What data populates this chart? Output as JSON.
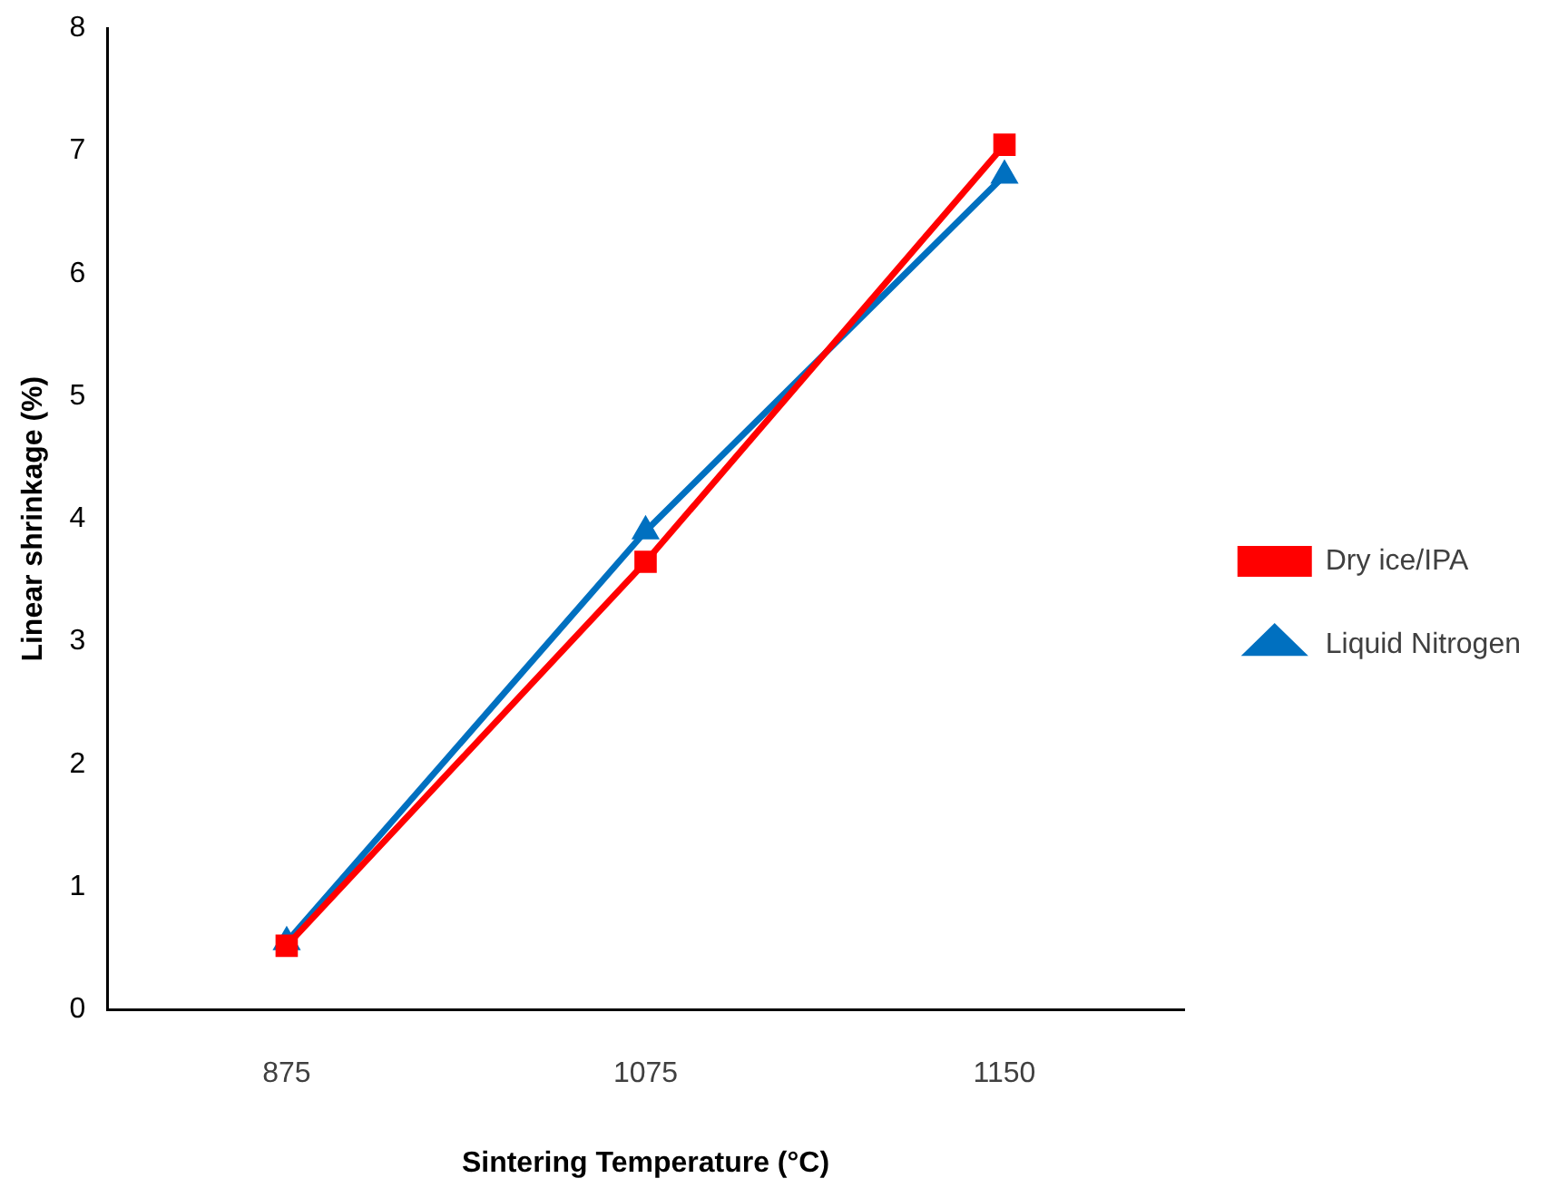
{
  "chart_data": {
    "type": "line",
    "xlabel": "Sintering Temperature (°C)",
    "ylabel": "Linear shrinkage (%)",
    "categories": [
      "875",
      "1075",
      "1150"
    ],
    "series": [
      {
        "name": "Liquid Nitrogen",
        "color": "#0070c0",
        "marker": "triangle",
        "values": [
          0.55,
          3.9,
          6.8
        ]
      },
      {
        "name": "Dry ice/IPA",
        "color": "#ff0000",
        "marker": "square",
        "values": [
          0.52,
          3.65,
          7.05
        ]
      }
    ],
    "ylim": [
      0,
      8
    ],
    "yticks": [
      0,
      1,
      2,
      3,
      4,
      5,
      6,
      7,
      8
    ],
    "grid": false,
    "legend": "right",
    "line_style": "solid"
  }
}
